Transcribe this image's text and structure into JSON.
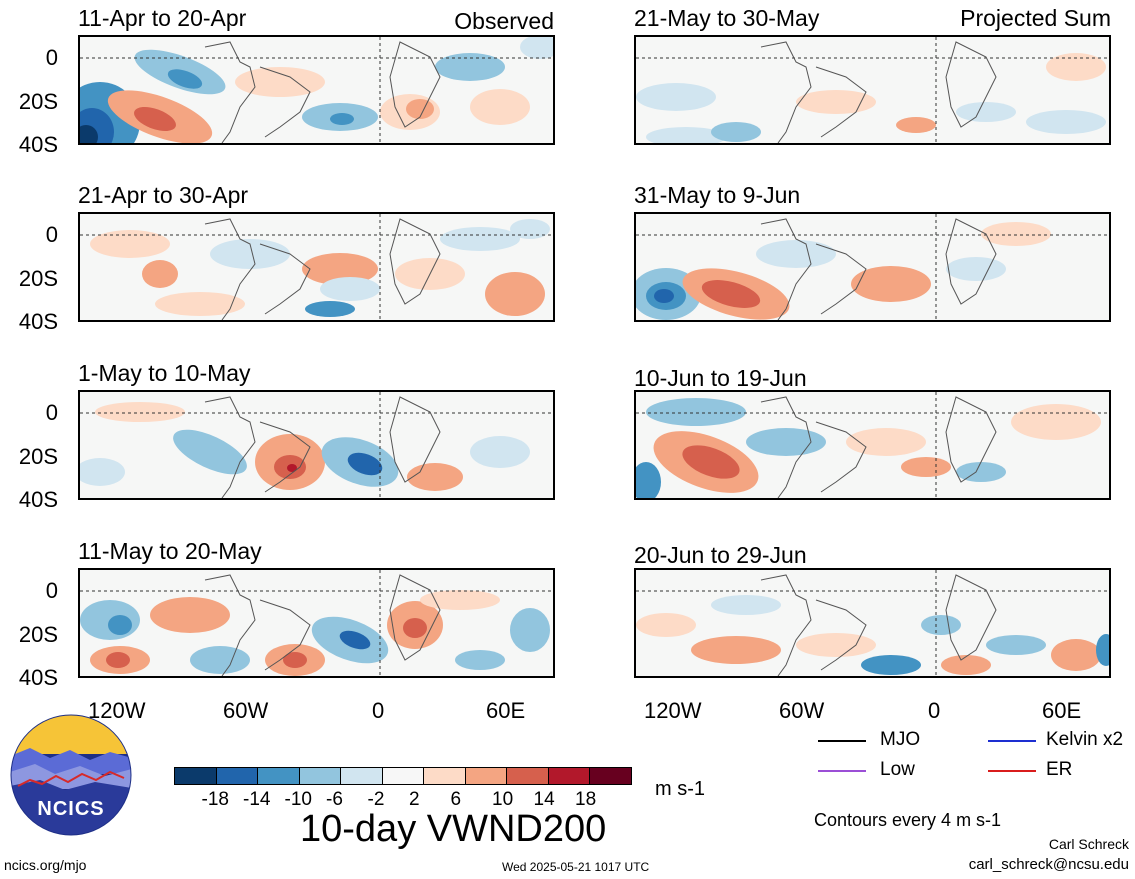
{
  "observed_label": "Observed",
  "projected_label": "Projected Sum",
  "panels_left": [
    {
      "title": "11-Apr to 20-Apr"
    },
    {
      "title": "21-Apr to 30-Apr"
    },
    {
      "title": "1-May to 10-May"
    },
    {
      "title": "11-May to 20-May"
    }
  ],
  "panels_right": [
    {
      "title": "21-May to 30-May"
    },
    {
      "title": "31-May to 9-Jun"
    },
    {
      "title": "10-Jun to 19-Jun"
    },
    {
      "title": "20-Jun to 29-Jun"
    }
  ],
  "lat_labels": [
    "0",
    "20S",
    "40S"
  ],
  "lon_labels": [
    "120W",
    "60W",
    "0",
    "60E"
  ],
  "colorbar": {
    "colors": [
      "#0b3a6b",
      "#2165ac",
      "#4393c3",
      "#92c5de",
      "#d1e5f0",
      "#f7f7f7",
      "#fddbc7",
      "#f4a582",
      "#d6604d",
      "#b2182b",
      "#67001f"
    ],
    "labels": [
      "-18",
      "-14",
      "-10",
      "-6",
      "-2",
      "2",
      "6",
      "10",
      "14",
      "18"
    ],
    "units": "m s-1"
  },
  "main_title": "10-day VWND200",
  "legend": [
    {
      "label": "MJO",
      "color": "#000000"
    },
    {
      "label": "Kelvin x2",
      "color": "#1d2fd1"
    },
    {
      "label": "Low",
      "color": "#9b4fd6"
    },
    {
      "label": "ER",
      "color": "#d91c1c"
    }
  ],
  "contours_note": "Contours every 4 m s-1",
  "author": "Carl Schreck",
  "email": "carl_schreck@ncsu.edu",
  "site": "ncics.org/mjo",
  "timestamp": "Wed 2025-05-21 1017 UTC",
  "logo_text": "NCICS"
}
